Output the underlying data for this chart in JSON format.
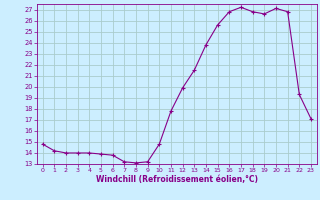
{
  "x": [
    0,
    1,
    2,
    3,
    4,
    5,
    6,
    7,
    8,
    9,
    10,
    11,
    12,
    13,
    14,
    15,
    16,
    17,
    18,
    19,
    20,
    21,
    22,
    23
  ],
  "y": [
    14.8,
    14.2,
    14.0,
    14.0,
    14.0,
    13.9,
    13.8,
    13.2,
    13.1,
    13.2,
    14.8,
    17.8,
    19.9,
    21.5,
    23.8,
    25.6,
    26.8,
    27.2,
    26.8,
    26.6,
    27.1,
    26.8,
    19.3,
    17.1
  ],
  "line_color": "#880088",
  "marker": "+",
  "bg_color": "#cceeff",
  "grid_color": "#aacccc",
  "axis_label_color": "#880088",
  "tick_color": "#880088",
  "xlabel": "Windchill (Refroidissement éolien,°C)",
  "ylim": [
    13,
    27.5
  ],
  "xlim": [
    -0.5,
    23.5
  ],
  "yticks": [
    13,
    14,
    15,
    16,
    17,
    18,
    19,
    20,
    21,
    22,
    23,
    24,
    25,
    26,
    27
  ],
  "xticks": [
    0,
    1,
    2,
    3,
    4,
    5,
    6,
    7,
    8,
    9,
    10,
    11,
    12,
    13,
    14,
    15,
    16,
    17,
    18,
    19,
    20,
    21,
    22,
    23
  ]
}
